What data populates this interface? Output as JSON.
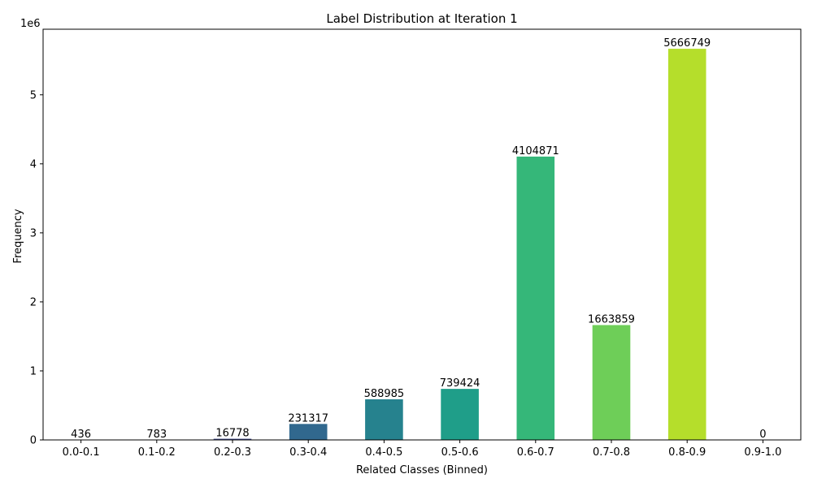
{
  "chart_data": {
    "type": "bar",
    "title": "Label Distribution at Iteration 1",
    "xlabel": "Related Classes (Binned)",
    "ylabel": "Frequency",
    "y_offset_label": "1e6",
    "y_scale": 1000000,
    "categories": [
      "0.0-0.1",
      "0.1-0.2",
      "0.2-0.3",
      "0.3-0.4",
      "0.4-0.5",
      "0.5-0.6",
      "0.6-0.7",
      "0.7-0.8",
      "0.8-0.9",
      "0.9-1.0"
    ],
    "values": [
      436,
      783,
      16778,
      231317,
      588985,
      739424,
      4104871,
      1663859,
      5666749,
      0
    ],
    "data_labels": [
      "436",
      "783",
      "16778",
      "231317",
      "588985",
      "739424",
      "4104871",
      "1663859",
      "5666749",
      "0"
    ],
    "ylim": [
      0,
      5950086
    ],
    "yticks": [
      0,
      1000000,
      2000000,
      3000000,
      4000000,
      5000000
    ],
    "ytick_labels": [
      "0",
      "1",
      "2",
      "3",
      "4",
      "5"
    ],
    "colors": [
      "#440154",
      "#482878",
      "#3e4989",
      "#31688e",
      "#26828e",
      "#1f9e89",
      "#35b779",
      "#6ece58",
      "#b5de2b",
      "#fde725"
    ],
    "grid": false,
    "legend": false
  }
}
